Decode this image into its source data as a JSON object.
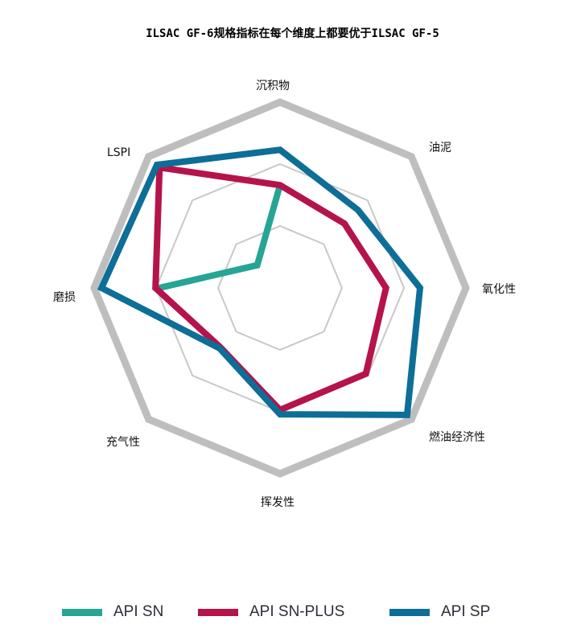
{
  "title": "ILSAC GF-6规格指标在每个维度上都要优于ILSAC GF-5",
  "chart_data": {
    "type": "radar",
    "title": "ILSAC GF-6规格指标在每个维度上都要优于ILSAC GF-5",
    "categories": [
      "沉积物",
      "油泥",
      "氧化性",
      "燃油经济性",
      "挥发性",
      "充气性",
      "磨损",
      "LSPI"
    ],
    "rlim": [
      0,
      3
    ],
    "grid_rings": [
      1,
      2,
      3
    ],
    "grid": true,
    "legend_position": "bottom",
    "series": [
      {
        "name": "API SN",
        "color": "#26a595",
        "values": [
          1.66,
          null,
          null,
          null,
          null,
          null,
          1.95,
          0.52
        ]
      },
      {
        "name": "API SN-PLUS",
        "color": "#b5134b",
        "values": [
          1.66,
          1.47,
          1.71,
          1.96,
          1.97,
          1.36,
          2.01,
          2.75
        ]
      },
      {
        "name": "API SP",
        "color": "#0d6e98",
        "values": [
          2.23,
          1.78,
          2.26,
          2.9,
          2.04,
          1.38,
          2.88,
          2.81
        ]
      }
    ]
  },
  "axis_labels": [
    "沉积物",
    "油泥",
    "氧化性",
    "燃油经济性",
    "挥发性",
    "充气性",
    "磨损",
    "LSPI"
  ],
  "legend": [
    {
      "label": "API SN",
      "color": "#26a595"
    },
    {
      "label": "API SN-PLUS",
      "color": "#b5134b"
    },
    {
      "label": "API SP",
      "color": "#0d6e98"
    }
  ],
  "colors": {
    "grid_outer": "#bebebe",
    "grid_inner": "#c8c8c8"
  }
}
